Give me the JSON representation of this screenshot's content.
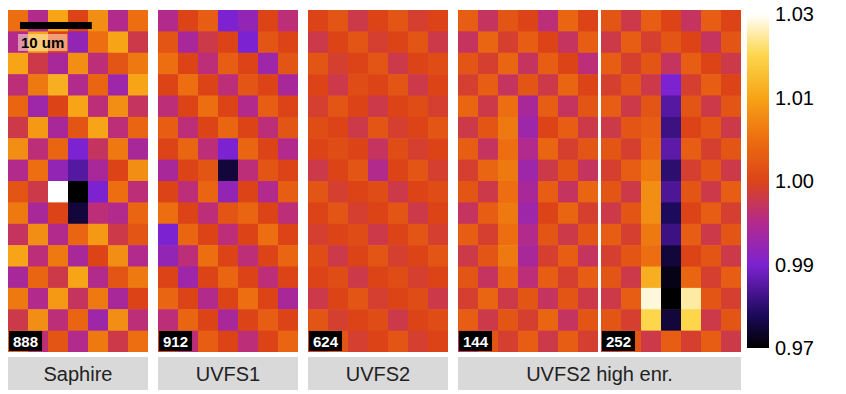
{
  "chart_data": {
    "type": "heatmap",
    "tick_labels": false,
    "xlim": [
      0,
      19.5
    ],
    "ylim": [
      0,
      47.5
    ],
    "colorbar": {
      "range": [
        0.97,
        1.03
      ],
      "ticks": [
        0.97,
        0.99,
        {
          "value": 1,
          "label": "1.00"
        },
        1.01,
        1.03
      ]
    },
    "scale_bar": {
      "label": "10 um",
      "length": 10
    },
    "groups": [
      {
        "label": "Saphire",
        "panels": [
          {
            "label": "888",
            "cells": [
              [
                1.005,
                0.995,
                1.01,
                1.0,
                1.008,
                0.995,
                1.005
              ],
              [
                0.995,
                1.01,
                1.0,
                0.992,
                1.005,
                1.01,
                0.998
              ],
              [
                1.01,
                0.998,
                0.994,
                1.008,
                0.996,
                1.002,
                1.006
              ],
              [
                0.996,
                1.006,
                1.012,
                0.995,
                1.004,
                0.993,
                1.01
              ],
              [
                1.004,
                0.993,
                1.0,
                1.01,
                0.996,
                1.008,
                0.997
              ],
              [
                0.998,
                1.009,
                0.994,
                1.002,
                1.01,
                0.996,
                1.004
              ],
              [
                1.008,
                0.996,
                1.004,
                0.99,
                0.997,
                1.006,
                0.994
              ],
              [
                0.995,
                1.005,
                0.992,
                0.985,
                0.994,
                1.0,
                1.008
              ],
              [
                1.002,
                0.998,
                1.03,
                0.97,
                0.99,
                1.005,
                0.996
              ],
              [
                1.006,
                0.994,
                1.0,
                0.975,
                0.996,
                0.995,
                1.004
              ],
              [
                0.997,
                1.008,
                0.995,
                1.004,
                1.009,
                0.998,
                1.002
              ],
              [
                1.01,
                0.996,
                1.006,
                0.994,
                1.0,
                1.008,
                0.995
              ],
              [
                0.994,
                1.004,
                0.998,
                1.01,
                0.995,
                1.002,
                1.006
              ],
              [
                1.006,
                0.995,
                1.009,
                0.997,
                1.006,
                0.994,
                1.0
              ],
              [
                0.998,
                1.008,
                0.996,
                1.004,
                0.993,
                1.008,
                0.996
              ],
              [
                1.004,
                0.996,
                1.002,
                0.995,
                1.006,
                0.998,
                1.005
              ]
            ]
          }
        ]
      },
      {
        "label": "UVFS1",
        "panels": [
          {
            "label": "912",
            "cells": [
              [
                0.995,
                1.0,
                1.003,
                0.99,
                0.992,
                1.0,
                0.996
              ],
              [
                1.002,
                0.994,
                0.998,
                1.0,
                0.99,
                1.002,
                1.0
              ],
              [
                1.005,
                1.0,
                0.996,
                1.003,
                1.0,
                0.993,
                1.002
              ],
              [
                1.0,
                1.005,
                1.0,
                0.996,
                1.002,
                1.0,
                0.994
              ],
              [
                0.996,
                1.0,
                1.005,
                1.0,
                0.995,
                1.003,
                1.0
              ],
              [
                1.003,
                0.996,
                1.0,
                1.004,
                1.0,
                0.996,
                1.002
              ],
              [
                1.0,
                1.004,
                0.996,
                0.99,
                1.004,
                1.0,
                0.995
              ],
              [
                0.994,
                1.0,
                1.002,
                0.975,
                0.996,
                1.002,
                1.0
              ],
              [
                1.0,
                0.996,
                1.004,
                0.992,
                1.0,
                0.995,
                1.003
              ],
              [
                1.005,
                1.0,
                0.996,
                1.002,
                1.004,
                1.0,
                0.996
              ],
              [
                0.99,
                1.004,
                1.0,
                0.996,
                1.0,
                1.005,
                1.0
              ],
              [
                0.992,
                0.996,
                1.005,
                1.0,
                0.996,
                1.0,
                1.004
              ],
              [
                1.0,
                0.993,
                1.0,
                1.004,
                1.0,
                0.996,
                1.0
              ],
              [
                1.004,
                1.0,
                0.995,
                1.0,
                1.005,
                1.0,
                0.994
              ],
              [
                0.996,
                1.004,
                1.0,
                0.994,
                1.0,
                1.003,
                1.0
              ],
              [
                1.0,
                0.996,
                1.003,
                1.0,
                0.996,
                1.0,
                1.004
              ]
            ]
          }
        ]
      },
      {
        "label": "UVFS2",
        "panels": [
          {
            "label": "624",
            "cells": [
              [
                1.0,
                1.002,
                0.998,
                1.0,
                1.002,
                0.999,
                1.0
              ],
              [
                0.998,
                1.0,
                1.002,
                0.999,
                1.0,
                1.002,
                0.998
              ],
              [
                1.002,
                0.999,
                1.0,
                1.002,
                0.998,
                1.0,
                1.001
              ],
              [
                1.0,
                0.998,
                1.001,
                1.0,
                1.002,
                0.998,
                1.0
              ],
              [
                0.999,
                1.002,
                1.0,
                0.998,
                1.0,
                1.001,
                0.999
              ],
              [
                1.001,
                1.0,
                0.998,
                1.002,
                0.999,
                1.0,
                1.002
              ],
              [
                1.0,
                1.001,
                1.0,
                0.997,
                1.001,
                0.999,
                1.0
              ],
              [
                0.998,
                1.0,
                1.002,
                0.995,
                1.0,
                1.002,
                0.999
              ],
              [
                1.002,
                0.999,
                1.0,
                1.001,
                0.998,
                1.0,
                1.001
              ],
              [
                1.0,
                1.002,
                0.999,
                1.0,
                1.002,
                0.998,
                1.0
              ],
              [
                0.999,
                1.0,
                1.001,
                0.998,
                1.0,
                1.002,
                0.999
              ],
              [
                1.001,
                0.998,
                1.0,
                1.002,
                0.999,
                1.0,
                1.002
              ],
              [
                1.0,
                1.001,
                0.998,
                1.0,
                1.001,
                0.999,
                1.0
              ],
              [
                0.998,
                1.0,
                1.002,
                0.999,
                1.0,
                1.001,
                0.998
              ],
              [
                1.002,
                0.999,
                1.0,
                1.001,
                0.998,
                1.0,
                1.001
              ],
              [
                1.0,
                1.002,
                0.999,
                1.0,
                1.002,
                0.999,
                1.0
              ]
            ]
          }
        ]
      },
      {
        "label": "UVFS2 high enr.",
        "panels": [
          {
            "label": "144",
            "cells": [
              [
                1.003,
                0.997,
                1.002,
                1.0,
                0.996,
                1.004,
                1.0
              ],
              [
                0.997,
                1.004,
                0.999,
                1.003,
                1.0,
                0.997,
                1.003
              ],
              [
                1.002,
                0.999,
                1.004,
                0.997,
                1.003,
                1.0,
                0.996
              ],
              [
                0.999,
                1.003,
                0.997,
                1.002,
                0.998,
                1.004,
                1.0
              ],
              [
                1.004,
                0.998,
                1.005,
                0.994,
                1.003,
                0.997,
                1.002
              ],
              [
                0.998,
                1.002,
                1.006,
                0.993,
                1.0,
                1.003,
                0.998
              ],
              [
                1.003,
                0.997,
                1.005,
                0.995,
                1.004,
                0.999,
                1.002
              ],
              [
                0.999,
                1.004,
                1.006,
                0.993,
                0.998,
                1.002,
                0.997
              ],
              [
                1.002,
                0.998,
                1.005,
                0.994,
                1.003,
                0.997,
                1.004
              ],
              [
                0.997,
                1.003,
                1.006,
                0.993,
                1.0,
                1.004,
                0.999
              ],
              [
                1.003,
                0.999,
                1.005,
                0.995,
                1.002,
                0.998,
                1.002
              ],
              [
                0.998,
                1.002,
                1.006,
                0.994,
                0.999,
                1.003,
                0.997
              ],
              [
                1.002,
                0.997,
                1.004,
                0.996,
                1.003,
                0.999,
                1.003
              ],
              [
                0.999,
                1.004,
                0.998,
                1.002,
                0.997,
                1.002,
                0.998
              ],
              [
                1.003,
                0.998,
                1.002,
                0.999,
                1.004,
                0.997,
                1.002
              ],
              [
                0.997,
                1.002,
                0.999,
                1.003,
                0.998,
                1.003,
                0.999
              ]
            ]
          },
          {
            "label": "252",
            "cells": [
              [
                1.002,
                0.998,
                1.003,
                1.0,
                0.997,
                1.003,
                1.0
              ],
              [
                0.998,
                1.003,
                0.999,
                1.002,
                1.0,
                0.997,
                1.002
              ],
              [
                1.003,
                0.999,
                1.002,
                0.997,
                1.003,
                1.0,
                0.998
              ],
              [
                0.999,
                1.002,
                0.998,
                0.99,
                0.999,
                1.003,
                1.0
              ],
              [
                1.003,
                0.998,
                1.002,
                0.985,
                1.002,
                0.998,
                1.002
              ],
              [
                0.998,
                1.002,
                1.003,
                0.982,
                1.0,
                1.002,
                0.998
              ],
              [
                1.002,
                0.999,
                1.004,
                0.986,
                1.003,
                0.999,
                1.002
              ],
              [
                0.999,
                1.003,
                1.006,
                0.98,
                0.999,
                1.002,
                0.998
              ],
              [
                1.002,
                0.998,
                1.008,
                0.984,
                1.002,
                0.998,
                1.003
              ],
              [
                0.998,
                1.002,
                1.008,
                0.978,
                1.0,
                1.003,
                0.999
              ],
              [
                1.003,
                0.999,
                1.006,
                0.982,
                1.003,
                0.998,
                1.002
              ],
              [
                0.999,
                1.002,
                1.005,
                0.975,
                1.0,
                1.002,
                0.998
              ],
              [
                1.002,
                0.998,
                1.012,
                0.972,
                1.004,
                0.999,
                1.003
              ],
              [
                0.998,
                1.003,
                1.028,
                0.97,
                1.025,
                1.002,
                0.999
              ],
              [
                1.002,
                0.999,
                1.02,
                0.975,
                1.02,
                0.998,
                1.002
              ],
              [
                0.999,
                1.002,
                0.998,
                1.003,
                0.999,
                1.003,
                0.998
              ]
            ]
          }
        ]
      }
    ]
  }
}
